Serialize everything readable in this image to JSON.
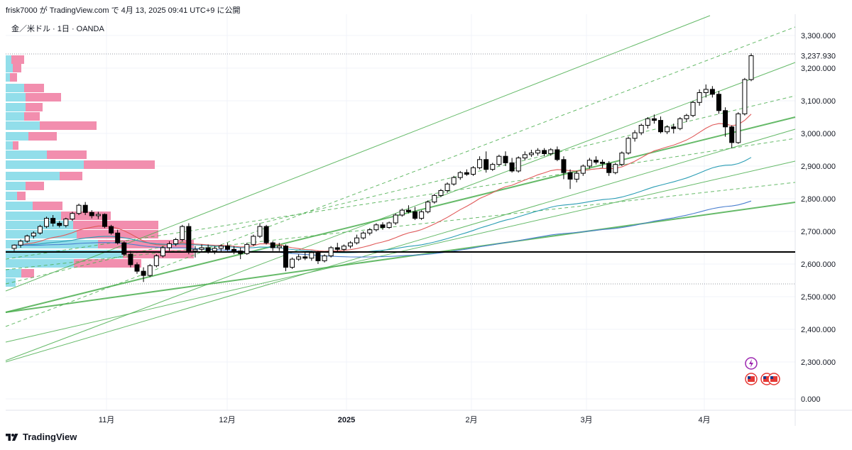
{
  "header": {
    "text": "frisk7000 が TradingView.com で 4月 13, 2025 09:41 UTC+9 に公開",
    "symbol": "金／米ドル · 1日 · OANDA"
  },
  "footer": {
    "brand": "TradingView"
  },
  "colors": {
    "bull_candle": "#ffffff",
    "bear_candle": "#000000",
    "ema_red": "#e05a5a",
    "ema_teal": "#2a9db4",
    "sma_blue": "#4a7fcf",
    "channel_green": "#4caf50",
    "vp_up": "#7fd8e6",
    "vp_down": "#f07aa0",
    "poc_line": "#000000"
  },
  "chart_data": {
    "type": "candlestick",
    "y_axis": {
      "labels": [
        "3,300.000",
        "3,200.000",
        "3,100.000",
        "3,000.000",
        "2,900.000",
        "2,800.000",
        "2,700.000",
        "2,600.000",
        "2,500.000",
        "2,400.000",
        "2,300.000",
        "0.000"
      ],
      "last_price": "3,237.930"
    },
    "x_axis": {
      "labels": [
        "11月",
        "12月",
        "2025",
        "2月",
        "3月",
        "4月"
      ]
    },
    "poc_price": 2637,
    "candles": [
      [
        2648,
        2660,
        2640,
        2658
      ],
      [
        2658,
        2675,
        2650,
        2670
      ],
      [
        2670,
        2690,
        2665,
        2686
      ],
      [
        2686,
        2700,
        2678,
        2695
      ],
      [
        2695,
        2720,
        2690,
        2715
      ],
      [
        2715,
        2745,
        2710,
        2740
      ],
      [
        2740,
        2750,
        2715,
        2725
      ],
      [
        2725,
        2732,
        2712,
        2718
      ],
      [
        2718,
        2742,
        2712,
        2738
      ],
      [
        2738,
        2760,
        2732,
        2755
      ],
      [
        2755,
        2785,
        2750,
        2780
      ],
      [
        2780,
        2790,
        2750,
        2758
      ],
      [
        2758,
        2765,
        2740,
        2748
      ],
      [
        2748,
        2760,
        2738,
        2752
      ],
      [
        2752,
        2755,
        2710,
        2715
      ],
      [
        2715,
        2720,
        2690,
        2695
      ],
      [
        2695,
        2705,
        2660,
        2665
      ],
      [
        2665,
        2670,
        2625,
        2630
      ],
      [
        2630,
        2640,
        2590,
        2598
      ],
      [
        2598,
        2605,
        2570,
        2578
      ],
      [
        2578,
        2590,
        2545,
        2565
      ],
      [
        2565,
        2600,
        2560,
        2595
      ],
      [
        2595,
        2630,
        2590,
        2625
      ],
      [
        2625,
        2655,
        2620,
        2650
      ],
      [
        2650,
        2670,
        2640,
        2662
      ],
      [
        2662,
        2680,
        2655,
        2675
      ],
      [
        2675,
        2720,
        2670,
        2715
      ],
      [
        2715,
        2725,
        2630,
        2640
      ],
      [
        2640,
        2655,
        2620,
        2645
      ],
      [
        2645,
        2660,
        2635,
        2650
      ],
      [
        2650,
        2660,
        2632,
        2640
      ],
      [
        2640,
        2655,
        2630,
        2648
      ],
      [
        2648,
        2660,
        2638,
        2655
      ],
      [
        2655,
        2665,
        2640,
        2645
      ],
      [
        2645,
        2655,
        2630,
        2640
      ],
      [
        2640,
        2650,
        2615,
        2632
      ],
      [
        2632,
        2665,
        2628,
        2660
      ],
      [
        2660,
        2690,
        2655,
        2685
      ],
      [
        2685,
        2725,
        2680,
        2715
      ],
      [
        2715,
        2720,
        2660,
        2665
      ],
      [
        2665,
        2670,
        2640,
        2650
      ],
      [
        2650,
        2665,
        2640,
        2655
      ],
      [
        2655,
        2660,
        2578,
        2590
      ],
      [
        2590,
        2620,
        2585,
        2615
      ],
      [
        2615,
        2630,
        2610,
        2622
      ],
      [
        2622,
        2635,
        2612,
        2618
      ],
      [
        2618,
        2640,
        2610,
        2635
      ],
      [
        2635,
        2640,
        2600,
        2610
      ],
      [
        2610,
        2630,
        2605,
        2625
      ],
      [
        2625,
        2655,
        2620,
        2650
      ],
      [
        2650,
        2665,
        2638,
        2645
      ],
      [
        2645,
        2660,
        2640,
        2655
      ],
      [
        2655,
        2670,
        2648,
        2665
      ],
      [
        2665,
        2690,
        2660,
        2680
      ],
      [
        2680,
        2700,
        2675,
        2695
      ],
      [
        2695,
        2710,
        2688,
        2705
      ],
      [
        2705,
        2725,
        2700,
        2720
      ],
      [
        2720,
        2728,
        2705,
        2712
      ],
      [
        2712,
        2730,
        2708,
        2726
      ],
      [
        2726,
        2755,
        2720,
        2750
      ],
      [
        2750,
        2770,
        2745,
        2765
      ],
      [
        2765,
        2780,
        2755,
        2760
      ],
      [
        2760,
        2775,
        2735,
        2740
      ],
      [
        2740,
        2765,
        2735,
        2760
      ],
      [
        2760,
        2795,
        2755,
        2790
      ],
      [
        2790,
        2815,
        2785,
        2810
      ],
      [
        2810,
        2830,
        2805,
        2825
      ],
      [
        2825,
        2850,
        2818,
        2845
      ],
      [
        2845,
        2870,
        2840,
        2865
      ],
      [
        2865,
        2885,
        2858,
        2880
      ],
      [
        2880,
        2890,
        2870,
        2875
      ],
      [
        2875,
        2900,
        2870,
        2895
      ],
      [
        2895,
        2930,
        2890,
        2920
      ],
      [
        2920,
        2945,
        2880,
        2890
      ],
      [
        2890,
        2910,
        2885,
        2905
      ],
      [
        2905,
        2935,
        2900,
        2930
      ],
      [
        2930,
        2945,
        2900,
        2910
      ],
      [
        2910,
        2925,
        2880,
        2885
      ],
      [
        2885,
        2930,
        2880,
        2925
      ],
      [
        2925,
        2945,
        2918,
        2935
      ],
      [
        2935,
        2950,
        2928,
        2940
      ],
      [
        2940,
        2955,
        2932,
        2948
      ],
      [
        2948,
        2955,
        2930,
        2938
      ],
      [
        2938,
        2955,
        2932,
        2950
      ],
      [
        2950,
        2960,
        2915,
        2920
      ],
      [
        2920,
        2930,
        2860,
        2880
      ],
      [
        2880,
        2890,
        2830,
        2860
      ],
      [
        2860,
        2885,
        2850,
        2878
      ],
      [
        2878,
        2905,
        2870,
        2900
      ],
      [
        2900,
        2925,
        2892,
        2918
      ],
      [
        2918,
        2930,
        2905,
        2912
      ],
      [
        2912,
        2920,
        2895,
        2908
      ],
      [
        2908,
        2915,
        2870,
        2880
      ],
      [
        2880,
        2910,
        2875,
        2905
      ],
      [
        2905,
        2945,
        2900,
        2940
      ],
      [
        2940,
        2990,
        2935,
        2985
      ],
      [
        2985,
        3010,
        2975,
        3002
      ],
      [
        3002,
        3030,
        2995,
        3025
      ],
      [
        3025,
        3050,
        3015,
        3045
      ],
      [
        3045,
        3058,
        3030,
        3040
      ],
      [
        3040,
        3052,
        3000,
        3005
      ],
      [
        3005,
        3025,
        2998,
        3020
      ],
      [
        3020,
        3030,
        3000,
        3015
      ],
      [
        3015,
        3050,
        3010,
        3045
      ],
      [
        3045,
        3060,
        3035,
        3055
      ],
      [
        3055,
        3100,
        3050,
        3095
      ],
      [
        3095,
        3135,
        3085,
        3125
      ],
      [
        3125,
        3150,
        3110,
        3135
      ],
      [
        3135,
        3145,
        3110,
        3120
      ],
      [
        3120,
        3130,
        3060,
        3070
      ],
      [
        3070,
        3080,
        2990,
        3020
      ],
      [
        3020,
        3025,
        2955,
        2972
      ],
      [
        2972,
        3065,
        2968,
        3060
      ],
      [
        3060,
        3170,
        3055,
        3165
      ],
      [
        3165,
        3245,
        3160,
        3238
      ]
    ]
  }
}
